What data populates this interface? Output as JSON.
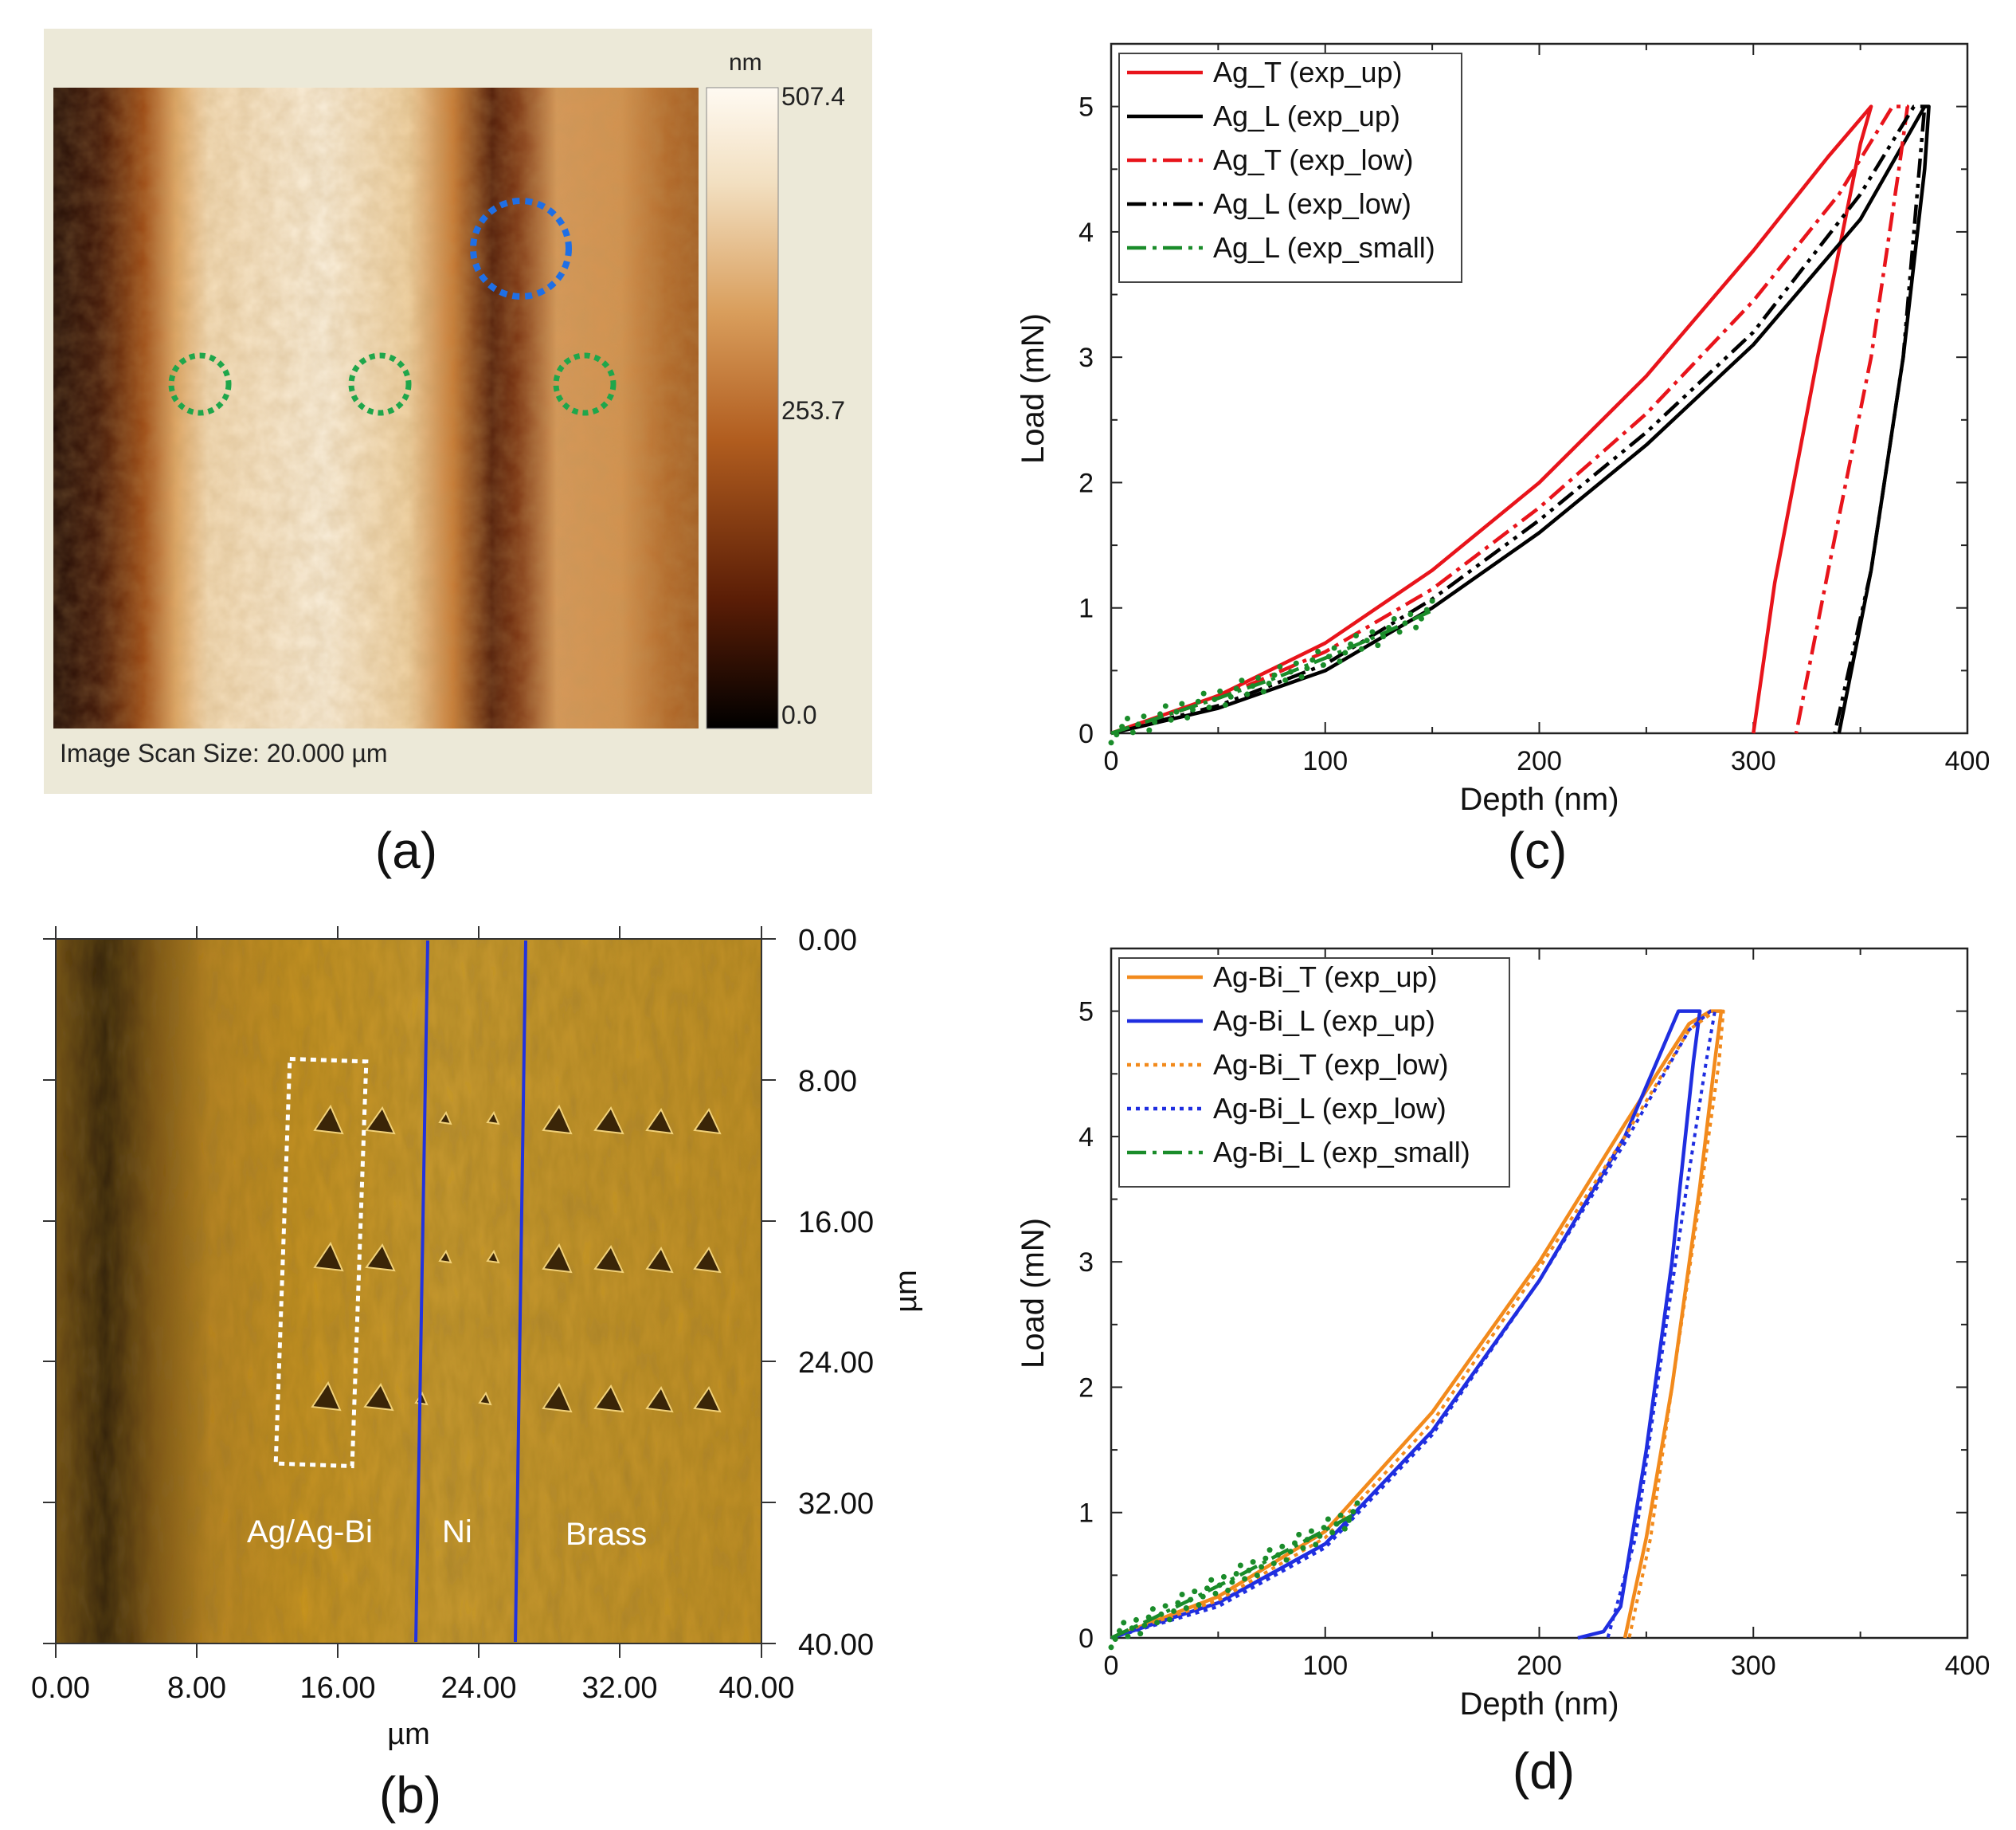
{
  "panel_labels": {
    "a": "(a)",
    "b": "(b)",
    "c": "(c)",
    "d": "(d)"
  },
  "panel_a": {
    "scale_unit": "nm",
    "scale_max": "507.4",
    "scale_mid": "253.7",
    "scale_min": "0.0",
    "caption": "Image Scan Size:  20.000 µm",
    "marker_colors": {
      "blue": "#1f6fe5",
      "green": "#1fa64b"
    },
    "colormap": [
      "#000000",
      "#5a1d06",
      "#b15d1f",
      "#d99e5c",
      "#f2dfc0",
      "#fffaf2"
    ]
  },
  "panel_b": {
    "x_ticks": [
      "0.00",
      "8.00",
      "16.00",
      "24.00",
      "32.00",
      "40.00"
    ],
    "y_ticks": [
      "0.00",
      "8.00",
      "16.00",
      "24.00",
      "32.00",
      "40.00"
    ],
    "x_label": "µm",
    "y_label": "µm",
    "region_labels": [
      "Ag/Ag-Bi",
      "Ni",
      "Brass"
    ],
    "boundary_color": "#2233dd"
  },
  "chart_data": [
    {
      "type": "line",
      "panel": "c",
      "xlabel": "Depth (nm)",
      "ylabel": "Load (mN)",
      "xlim": [
        0,
        400
      ],
      "ylim": [
        0,
        5.5
      ],
      "x_ticks": [
        0,
        100,
        200,
        300,
        400
      ],
      "y_ticks": [
        0,
        1,
        2,
        3,
        4,
        5
      ],
      "legend_position": "top-left",
      "series": [
        {
          "name": "Ag_T (exp_up)",
          "color": "#e8141b",
          "dash": "solid",
          "x": [
            0,
            50,
            100,
            150,
            200,
            250,
            300,
            335,
            355,
            355,
            350,
            330,
            310,
            300
          ],
          "y": [
            0,
            0.3,
            0.72,
            1.3,
            2.0,
            2.85,
            3.85,
            4.6,
            5.0,
            5.0,
            4.7,
            3.0,
            1.2,
            0
          ]
        },
        {
          "name": "Ag_L (exp_up)",
          "color": "#000000",
          "dash": "solid",
          "x": [
            0,
            50,
            100,
            150,
            200,
            250,
            300,
            350,
            380,
            382,
            380,
            370,
            355,
            340
          ],
          "y": [
            0,
            0.2,
            0.5,
            1.0,
            1.6,
            2.3,
            3.1,
            4.1,
            5.0,
            5.0,
            4.5,
            3.0,
            1.3,
            0
          ]
        },
        {
          "name": "Ag_T (exp_low)",
          "color": "#e8141b",
          "dash": "dashdot",
          "x": [
            0,
            50,
            100,
            150,
            200,
            250,
            300,
            340,
            365,
            372,
            368,
            355,
            335,
            320
          ],
          "y": [
            0,
            0.28,
            0.65,
            1.15,
            1.8,
            2.55,
            3.45,
            4.3,
            5.0,
            5.0,
            4.5,
            3.0,
            1.3,
            0
          ]
        },
        {
          "name": "Ag_L (exp_low)",
          "color": "#000000",
          "dash": "dashdotdot",
          "x": [
            0,
            50,
            100,
            150,
            200,
            250,
            300,
            350,
            375,
            380,
            378,
            370,
            355,
            338
          ],
          "y": [
            0,
            0.22,
            0.55,
            1.07,
            1.7,
            2.4,
            3.2,
            4.3,
            5.0,
            5.0,
            4.6,
            3.0,
            1.3,
            0
          ]
        },
        {
          "name": "Ag_L (exp_small)",
          "color": "#1a8c2a",
          "dash": "dashdot",
          "x": [
            0,
            25,
            50,
            75,
            100,
            125,
            150
          ],
          "y": [
            0,
            0.14,
            0.28,
            0.43,
            0.6,
            0.78,
            0.98
          ]
        }
      ]
    },
    {
      "type": "line",
      "panel": "d",
      "xlabel": "Depth (nm)",
      "ylabel": "Load (mN)",
      "xlim": [
        0,
        400
      ],
      "ylim": [
        0,
        5.5
      ],
      "x_ticks": [
        0,
        100,
        200,
        300,
        400
      ],
      "y_ticks": [
        0,
        1,
        2,
        3,
        4,
        5
      ],
      "legend_position": "top-left",
      "series": [
        {
          "name": "Ag-Bi_T (exp_up)",
          "color": "#f28a1c",
          "dash": "solid",
          "x": [
            0,
            50,
            100,
            150,
            200,
            240,
            270,
            280,
            285,
            282,
            275,
            262,
            250,
            240
          ],
          "y": [
            0,
            0.33,
            0.85,
            1.8,
            3.0,
            4.1,
            4.9,
            5.0,
            5.0,
            4.6,
            3.6,
            2.0,
            0.8,
            0
          ]
        },
        {
          "name": "Ag-Bi_L (exp_up)",
          "color": "#1f2ee0",
          "dash": "solid",
          "x": [
            0,
            50,
            100,
            150,
            200,
            240,
            265,
            275,
            272,
            262,
            250,
            238,
            230,
            218
          ],
          "y": [
            0,
            0.28,
            0.75,
            1.65,
            2.85,
            4.0,
            5.0,
            5.0,
            4.6,
            3.0,
            1.5,
            0.25,
            0.05,
            0
          ]
        },
        {
          "name": "Ag-Bi_T (exp_low)",
          "color": "#f28a1c",
          "dash": "dotted",
          "x": [
            0,
            50,
            100,
            150,
            200,
            240,
            270,
            282,
            286,
            284,
            275,
            262,
            252,
            242
          ],
          "y": [
            0,
            0.3,
            0.8,
            1.72,
            2.95,
            4.0,
            4.85,
            5.0,
            5.0,
            4.6,
            3.5,
            2.0,
            0.8,
            0
          ]
        },
        {
          "name": "Ag-Bi_L (exp_low)",
          "color": "#1f2ee0",
          "dash": "dotted",
          "x": [
            0,
            50,
            100,
            150,
            200,
            240,
            270,
            280,
            282,
            278,
            268,
            255,
            245,
            232
          ],
          "y": [
            0,
            0.25,
            0.72,
            1.62,
            2.85,
            3.95,
            4.85,
            5.0,
            5.0,
            4.6,
            3.5,
            2.0,
            0.8,
            0
          ]
        },
        {
          "name": "Ag-Bi_L (exp_small)",
          "color": "#1a8c2a",
          "dash": "dashdot",
          "x": [
            0,
            20,
            40,
            60,
            80,
            100,
            115
          ],
          "y": [
            0,
            0.16,
            0.33,
            0.5,
            0.68,
            0.86,
            1.0
          ]
        }
      ]
    }
  ]
}
